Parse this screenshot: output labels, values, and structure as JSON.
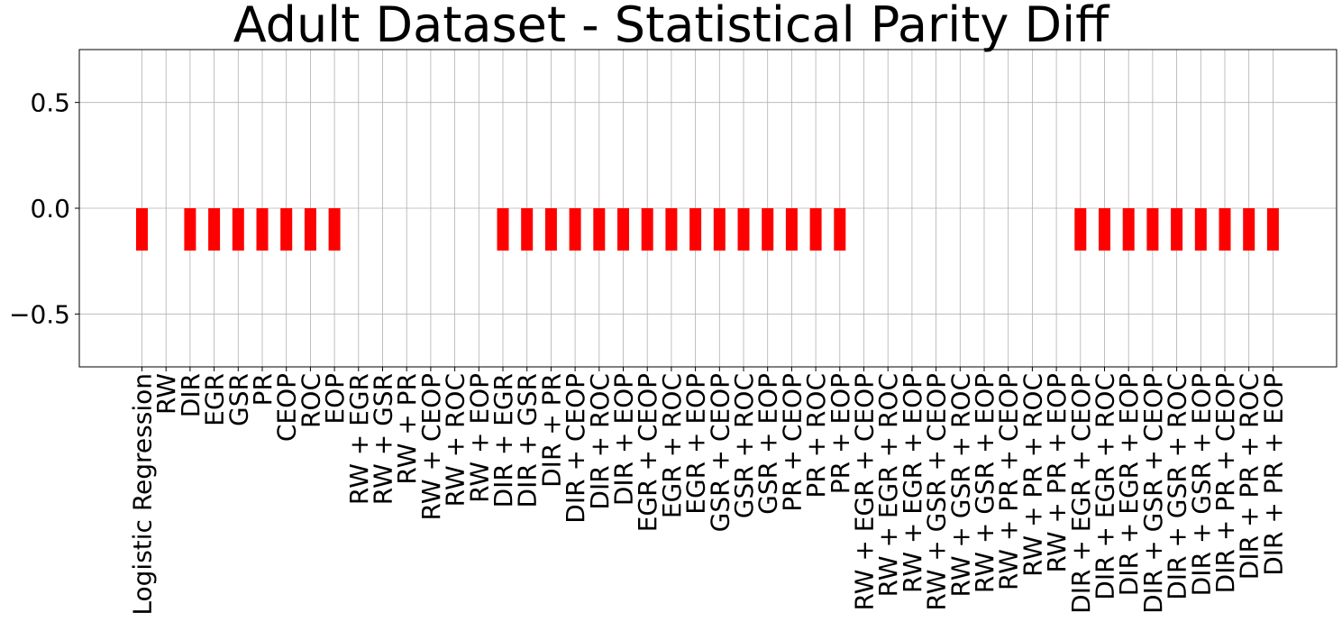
{
  "chart_data": {
    "type": "bar",
    "title": "Adult Dataset - Statistical Parity Diff",
    "xlabel": "",
    "ylabel": "",
    "ylim": [
      -0.75,
      0.75
    ],
    "yticks": [
      -0.5,
      0.0,
      0.5
    ],
    "ytick_labels": [
      "−0.5",
      "0.0",
      "0.5"
    ],
    "grid": true,
    "bar_color": "#ff0000",
    "categories": [
      "Logistic Regression",
      "RW",
      "DIR",
      "EGR",
      "GSR",
      "PR",
      "CEOP",
      "ROC",
      "EOP",
      "RW + EGR",
      "RW + GSR",
      "RW + PR",
      "RW + CEOP",
      "RW + ROC",
      "RW + EOP",
      "DIR + EGR",
      "DIR + GSR",
      "DIR + PR",
      "DIR + CEOP",
      "DIR + ROC",
      "DIR + EOP",
      "EGR + CEOP",
      "EGR + ROC",
      "EGR + EOP",
      "GSR + CEOP",
      "GSR + ROC",
      "GSR + EOP",
      "PR + CEOP",
      "PR + ROC",
      "PR + EOP",
      "RW + EGR + CEOP",
      "RW + EGR + ROC",
      "RW + EGR + EOP",
      "RW + GSR + CEOP",
      "RW + GSR + ROC",
      "RW + GSR + EOP",
      "RW + PR + CEOP",
      "RW + PR + ROC",
      "RW + PR + EOP",
      "DIR + EGR + CEOP",
      "DIR + EGR + ROC",
      "DIR + EGR + EOP",
      "DIR + GSR + CEOP",
      "DIR + GSR + ROC",
      "DIR + GSR + EOP",
      "DIR + PR + CEOP",
      "DIR + PR + ROC",
      "DIR + PR + EOP"
    ],
    "values": [
      -0.2,
      null,
      -0.2,
      -0.2,
      -0.2,
      -0.2,
      -0.2,
      -0.2,
      -0.2,
      null,
      null,
      null,
      null,
      null,
      null,
      -0.2,
      -0.2,
      -0.2,
      -0.2,
      -0.2,
      -0.2,
      -0.2,
      -0.2,
      -0.2,
      -0.2,
      -0.2,
      -0.2,
      -0.2,
      -0.2,
      -0.2,
      null,
      null,
      null,
      null,
      null,
      null,
      null,
      null,
      null,
      -0.2,
      -0.2,
      -0.2,
      -0.2,
      -0.2,
      -0.2,
      -0.2,
      -0.2,
      -0.2
    ]
  }
}
